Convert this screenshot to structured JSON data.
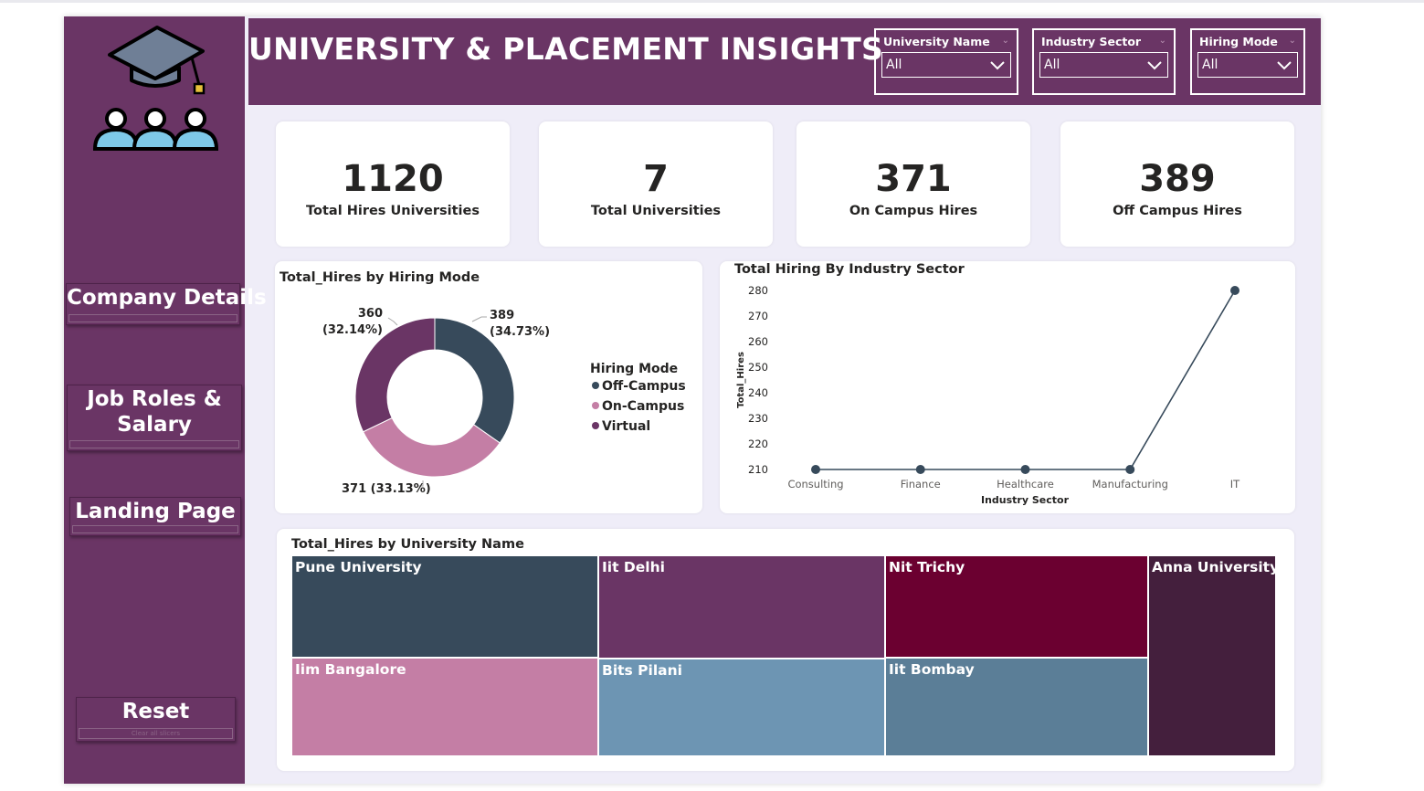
{
  "header": {
    "title": "UNIVERSITY & PLACEMENT INSIGHTS",
    "slicers": [
      {
        "label": "University Name",
        "value": "All"
      },
      {
        "label": "Industry Sector",
        "value": "All"
      },
      {
        "label": "Hiring Mode",
        "value": "All"
      }
    ]
  },
  "sidebar": {
    "buttons": [
      {
        "label": "Company Details"
      },
      {
        "label_line1": "Job Roles &",
        "label_line2": "Salary"
      },
      {
        "label": "Landing Page"
      },
      {
        "label": "Reset",
        "sublabel": "Clear all slicers"
      }
    ]
  },
  "kpis": [
    {
      "value": "1120",
      "label": "Total Hires Universities"
    },
    {
      "value": "7",
      "label": "Total Universities"
    },
    {
      "value": "371",
      "label": "On Campus Hires"
    },
    {
      "value": "389",
      "label": "Off Campus Hires"
    }
  ],
  "chart_data": [
    {
      "type": "pie",
      "title": "Total_Hires by Hiring Mode",
      "legend_title": "Hiring Mode",
      "legend_position": "right",
      "slices": [
        {
          "name": "Off-Campus",
          "value": 389,
          "percent": "34.73%",
          "color": "#374a5b"
        },
        {
          "name": "On-Campus",
          "value": 371,
          "percent": "33.13%",
          "color": "#c47ea5"
        },
        {
          "name": "Virtual",
          "value": 360,
          "percent": "32.14%",
          "color": "#6a3565"
        }
      ],
      "data_labels": [
        {
          "value": "389",
          "percent": "(34.73%)"
        },
        {
          "value": "371",
          "percent": "(33.13%)",
          "text": "371 (33.13%)"
        },
        {
          "value": "360",
          "percent": "(32.14%)"
        }
      ]
    },
    {
      "type": "line",
      "title": "Total Hiring By Industry Sector",
      "xlabel": "Industry Sector",
      "ylabel": "Total_Hires",
      "categories": [
        "Consulting",
        "Finance",
        "Healthcare",
        "Manufacturing",
        "IT"
      ],
      "values": [
        210,
        210,
        210,
        210,
        280
      ],
      "ylim": [
        210,
        280
      ],
      "yticks": [
        "210",
        "220",
        "230",
        "240",
        "250",
        "260",
        "270",
        "280"
      ],
      "grid": false,
      "color": "#374a5b"
    },
    {
      "type": "treemap",
      "title": "Total_Hires by University Name",
      "tiles": [
        {
          "name": "Pune University",
          "color": "#374a5b"
        },
        {
          "name": "Iit Delhi",
          "color": "#6a3565"
        },
        {
          "name": "Nit Trichy",
          "color": "#6b0030"
        },
        {
          "name": "Anna University",
          "color": "#441f3d"
        },
        {
          "name": "Iim Bangalore",
          "color": "#c47ea5"
        },
        {
          "name": "Bits Pilani",
          "color": "#6d95b3"
        },
        {
          "name": "Iit Bombay",
          "color": "#5b7e97"
        }
      ]
    }
  ]
}
